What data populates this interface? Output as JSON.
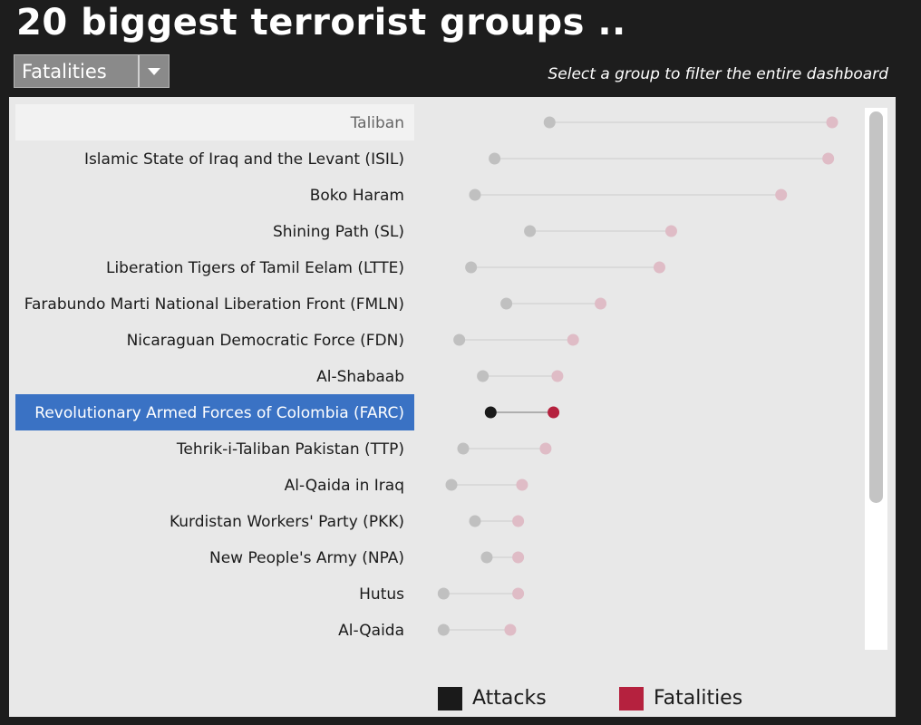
{
  "header": {
    "title": "20 biggest terrorist groups ..",
    "hint": "Select a group to filter the entire dashboard"
  },
  "filter": {
    "selected": "Fatalities"
  },
  "colors": {
    "attacks": "#1a1a1a",
    "fatalities": "#b5213e",
    "attacks_dim": "#c0c0c0",
    "fatalities_dim": "#dfbcc6",
    "selection": "#3a72c4"
  },
  "legend": {
    "attacks_label": "Attacks",
    "fatalities_label": "Fatalities"
  },
  "chart_data": {
    "type": "dumbbell",
    "x_relative_scale": [
      0,
      100
    ],
    "highlighted_category": "Taliban",
    "selected_category": "Revolutionary Armed Forces of Colombia (FARC)",
    "categories": [
      "Taliban",
      "Islamic State of Iraq and the Levant (ISIL)",
      "Boko Haram",
      "Shining Path (SL)",
      "Liberation Tigers of Tamil Eelam (LTTE)",
      "Farabundo Marti National Liberation Front (FMLN)",
      "Nicaraguan Democratic Force (FDN)",
      "Al-Shabaab",
      "Revolutionary Armed Forces of Colombia (FARC)",
      "Tehrik-i-Taliban Pakistan (TTP)",
      "Al-Qaida in Iraq",
      "Kurdistan Workers' Party (PKK)",
      "New People's Army (NPA)",
      "Hutus",
      "Al-Qaida"
    ],
    "series": [
      {
        "name": "Attacks",
        "values": [
          28,
          14,
          9,
          23,
          8,
          17,
          5,
          11,
          13,
          6,
          3,
          9,
          12,
          1,
          1
        ]
      },
      {
        "name": "Fatalities",
        "values": [
          100,
          99,
          87,
          59,
          56,
          41,
          34,
          30,
          29,
          27,
          21,
          20,
          20,
          20,
          18
        ]
      }
    ]
  }
}
